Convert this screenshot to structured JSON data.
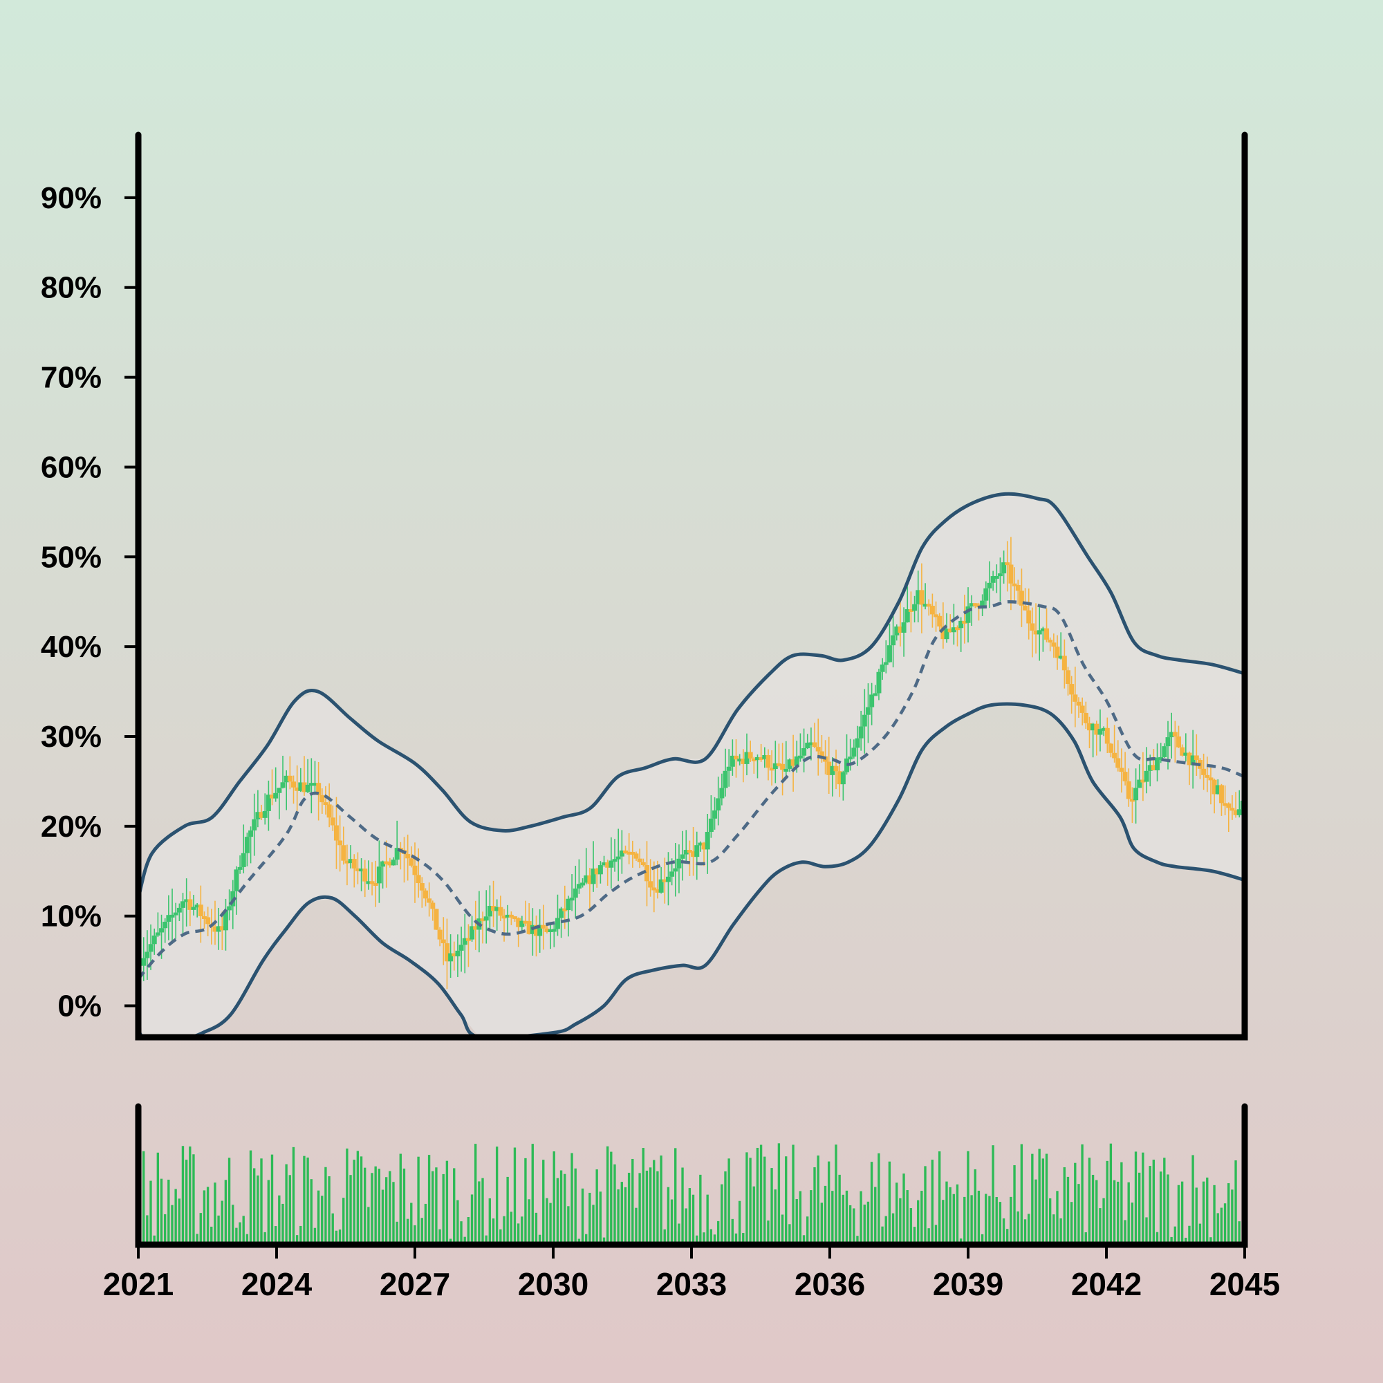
{
  "chart_data": {
    "type": "candlestick",
    "title": "",
    "xlabel": "",
    "ylabel": "",
    "x_ticks": [
      "2021",
      "2024",
      "2027",
      "2030",
      "2033",
      "2036",
      "2039",
      "2042",
      "2045"
    ],
    "y_ticks": [
      "0%",
      "10%",
      "20%",
      "30%",
      "40%",
      "50%",
      "60%",
      "70%",
      "80%",
      "90%"
    ],
    "xlim": [
      2021,
      2045
    ],
    "ylim": [
      -3.5,
      97
    ],
    "grid": false,
    "legend": "none",
    "price_path": [
      [
        2021.0,
        5
      ],
      [
        2021.6,
        9
      ],
      [
        2022.0,
        12
      ],
      [
        2022.4,
        10
      ],
      [
        2022.8,
        8
      ],
      [
        2023.3,
        18
      ],
      [
        2023.8,
        23
      ],
      [
        2024.2,
        25
      ],
      [
        2024.9,
        24
      ],
      [
        2025.5,
        16
      ],
      [
        2026.1,
        14
      ],
      [
        2026.7,
        18
      ],
      [
        2027.2,
        13
      ],
      [
        2027.7,
        5
      ],
      [
        2028.1,
        7
      ],
      [
        2028.6,
        11
      ],
      [
        2029.2,
        9
      ],
      [
        2029.9,
        8
      ],
      [
        2030.4,
        12
      ],
      [
        2031.1,
        16
      ],
      [
        2031.8,
        17
      ],
      [
        2032.2,
        13
      ],
      [
        2032.7,
        16
      ],
      [
        2033.3,
        18
      ],
      [
        2033.8,
        27
      ],
      [
        2034.4,
        28
      ],
      [
        2035.0,
        26
      ],
      [
        2035.6,
        29
      ],
      [
        2036.2,
        25
      ],
      [
        2036.6,
        30
      ],
      [
        2037.3,
        40
      ],
      [
        2037.9,
        46
      ],
      [
        2038.5,
        41
      ],
      [
        2039.2,
        45
      ],
      [
        2039.8,
        49
      ],
      [
        2040.3,
        43
      ],
      [
        2040.9,
        40
      ],
      [
        2041.5,
        32
      ],
      [
        2042.0,
        30
      ],
      [
        2042.5,
        23
      ],
      [
        2042.9,
        26
      ],
      [
        2043.4,
        30
      ],
      [
        2043.9,
        27
      ],
      [
        2044.4,
        24
      ],
      [
        2044.7,
        21
      ],
      [
        2045.0,
        23
      ]
    ],
    "moving_average": [
      [
        2021.0,
        3
      ],
      [
        2021.5,
        6
      ],
      [
        2022.0,
        8
      ],
      [
        2022.6,
        9
      ],
      [
        2023.4,
        14
      ],
      [
        2024.2,
        19
      ],
      [
        2024.6,
        23
      ],
      [
        2025.0,
        23.5
      ],
      [
        2025.6,
        21
      ],
      [
        2026.2,
        18.5
      ],
      [
        2027.0,
        16.5
      ],
      [
        2027.6,
        14
      ],
      [
        2028.2,
        10
      ],
      [
        2028.6,
        8.5
      ],
      [
        2029.1,
        8
      ],
      [
        2029.8,
        9
      ],
      [
        2030.6,
        10
      ],
      [
        2031.2,
        12.5
      ],
      [
        2031.8,
        14.5
      ],
      [
        2032.6,
        16
      ],
      [
        2033.4,
        16
      ],
      [
        2034.0,
        19
      ],
      [
        2034.8,
        24
      ],
      [
        2035.5,
        27.5
      ],
      [
        2036.0,
        27.5
      ],
      [
        2036.5,
        27
      ],
      [
        2037.2,
        30
      ],
      [
        2037.8,
        35
      ],
      [
        2038.3,
        41
      ],
      [
        2039.0,
        44
      ],
      [
        2039.5,
        44.5
      ],
      [
        2039.9,
        45
      ],
      [
        2040.6,
        44.5
      ],
      [
        2041.0,
        43.5
      ],
      [
        2041.5,
        38
      ],
      [
        2042.0,
        34
      ],
      [
        2042.6,
        28
      ],
      [
        2043.1,
        27.5
      ],
      [
        2043.8,
        27
      ],
      [
        2044.5,
        26.5
      ],
      [
        2045.0,
        25.5
      ]
    ],
    "upper_band": [
      [
        2021.0,
        12
      ],
      [
        2021.3,
        17
      ],
      [
        2022.0,
        20
      ],
      [
        2022.6,
        21
      ],
      [
        2023.2,
        25
      ],
      [
        2023.8,
        29
      ],
      [
        2024.4,
        34
      ],
      [
        2024.9,
        35
      ],
      [
        2025.6,
        32
      ],
      [
        2026.2,
        29.5
      ],
      [
        2027.0,
        27
      ],
      [
        2027.6,
        24
      ],
      [
        2028.2,
        20.5
      ],
      [
        2028.9,
        19.5
      ],
      [
        2029.5,
        20
      ],
      [
        2030.2,
        21
      ],
      [
        2030.8,
        22
      ],
      [
        2031.4,
        25.5
      ],
      [
        2032.0,
        26.5
      ],
      [
        2032.6,
        27.5
      ],
      [
        2033.3,
        27.5
      ],
      [
        2034.0,
        33
      ],
      [
        2034.7,
        37
      ],
      [
        2035.2,
        39
      ],
      [
        2035.8,
        39
      ],
      [
        2036.3,
        38.5
      ],
      [
        2036.9,
        40
      ],
      [
        2037.5,
        45
      ],
      [
        2038.0,
        51
      ],
      [
        2038.5,
        54
      ],
      [
        2039.1,
        56
      ],
      [
        2039.8,
        57
      ],
      [
        2040.5,
        56.5
      ],
      [
        2040.9,
        55.5
      ],
      [
        2041.6,
        50
      ],
      [
        2042.1,
        46
      ],
      [
        2042.6,
        40.5
      ],
      [
        2043.1,
        39
      ],
      [
        2043.6,
        38.5
      ],
      [
        2044.3,
        38
      ],
      [
        2045.0,
        37
      ]
    ],
    "lower_band": [
      [
        2021.0,
        0
      ],
      [
        2021.1,
        -3.5
      ],
      [
        2022.0,
        -3.5
      ],
      [
        2022.4,
        -3
      ],
      [
        2023.0,
        -1
      ],
      [
        2023.7,
        5
      ],
      [
        2024.2,
        8.5
      ],
      [
        2024.7,
        11.5
      ],
      [
        2025.2,
        12
      ],
      [
        2025.7,
        10
      ],
      [
        2026.3,
        7
      ],
      [
        2026.9,
        5
      ],
      [
        2027.5,
        2.5
      ],
      [
        2028.0,
        -1
      ],
      [
        2028.4,
        -3.5
      ],
      [
        2030.0,
        -3
      ],
      [
        2030.5,
        -2
      ],
      [
        2031.1,
        0
      ],
      [
        2031.6,
        3
      ],
      [
        2032.2,
        4
      ],
      [
        2032.8,
        4.5
      ],
      [
        2033.3,
        4.5
      ],
      [
        2033.9,
        9
      ],
      [
        2034.5,
        13
      ],
      [
        2034.9,
        15
      ],
      [
        2035.4,
        16
      ],
      [
        2035.9,
        15.5
      ],
      [
        2036.4,
        16
      ],
      [
        2036.9,
        18
      ],
      [
        2037.5,
        23
      ],
      [
        2038.0,
        28.5
      ],
      [
        2038.5,
        31
      ],
      [
        2039.0,
        32.5
      ],
      [
        2039.5,
        33.5
      ],
      [
        2040.2,
        33.5
      ],
      [
        2040.8,
        32.5
      ],
      [
        2041.3,
        29.5
      ],
      [
        2041.7,
        25
      ],
      [
        2042.3,
        21
      ],
      [
        2042.6,
        17.5
      ],
      [
        2043.1,
        16
      ],
      [
        2043.5,
        15.5
      ],
      [
        2044.3,
        15
      ],
      [
        2045.0,
        14
      ]
    ],
    "colors": {
      "up": "#3cc46e",
      "down": "#f5b341",
      "band": "#2b5270",
      "moving_average": "#4e6a86",
      "band_fill": "#e3e1de",
      "volume": "#2dba56",
      "axis": "#000000",
      "background_top": "#d2e9da",
      "background_bottom": "#e0c8c8"
    }
  }
}
